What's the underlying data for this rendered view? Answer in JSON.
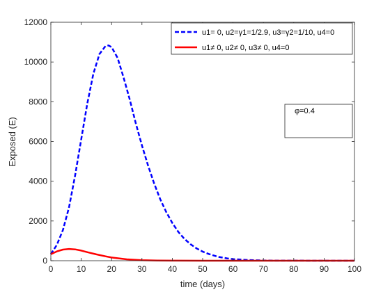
{
  "chart_data": {
    "type": "line",
    "xlabel": "time (days)",
    "ylabel": "Exposed (E)",
    "xlim": [
      0,
      100
    ],
    "ylim": [
      0,
      12000
    ],
    "xticks": [
      0,
      10,
      20,
      30,
      40,
      50,
      60,
      70,
      80,
      90,
      100
    ],
    "yticks": [
      0,
      2000,
      4000,
      6000,
      8000,
      10000,
      12000
    ],
    "grid": false,
    "legend_position": "top-right",
    "series": [
      {
        "name": "u1= 0, u2=γ1=1/2.9, u3=γ2=1/10, u4=0",
        "color": "#0000ff",
        "style": "dashed",
        "x": [
          0,
          2,
          4,
          6,
          8,
          10,
          12,
          14,
          16,
          18,
          19,
          20,
          22,
          24,
          26,
          28,
          30,
          32,
          34,
          36,
          38,
          40,
          42,
          44,
          46,
          48,
          50,
          52,
          55,
          58,
          60,
          65,
          70,
          75,
          80,
          90,
          100
        ],
        "y": [
          330,
          800,
          1550,
          2700,
          4300,
          6100,
          7900,
          9400,
          10400,
          10800,
          10830,
          10750,
          10200,
          9200,
          8100,
          6900,
          5800,
          4800,
          3900,
          3100,
          2450,
          1900,
          1450,
          1100,
          830,
          620,
          460,
          340,
          200,
          120,
          80,
          35,
          12,
          5,
          2,
          0,
          0
        ]
      },
      {
        "name": "u1≠ 0, u2≠ 0, u3≠ 0, u4=0",
        "color": "#ff0000",
        "style": "solid",
        "x": [
          0,
          2,
          4,
          6,
          8,
          10,
          12,
          15,
          18,
          20,
          25,
          30,
          35,
          40,
          50,
          60,
          70,
          80,
          90,
          100
        ],
        "y": [
          330,
          470,
          560,
          590,
          570,
          510,
          430,
          320,
          220,
          160,
          70,
          25,
          10,
          3,
          0,
          0,
          0,
          0,
          0,
          0
        ]
      }
    ],
    "annotation": "φ=0.4"
  }
}
